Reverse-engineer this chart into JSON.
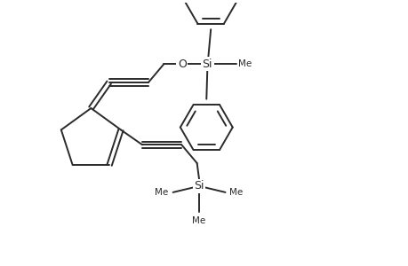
{
  "background_color": "#ffffff",
  "line_color": "#2a2a2a",
  "line_width": 1.4,
  "fig_width": 4.6,
  "fig_height": 3.0,
  "dpi": 100,
  "xlim": [
    0,
    9.2
  ],
  "ylim": [
    0,
    6.0
  ]
}
